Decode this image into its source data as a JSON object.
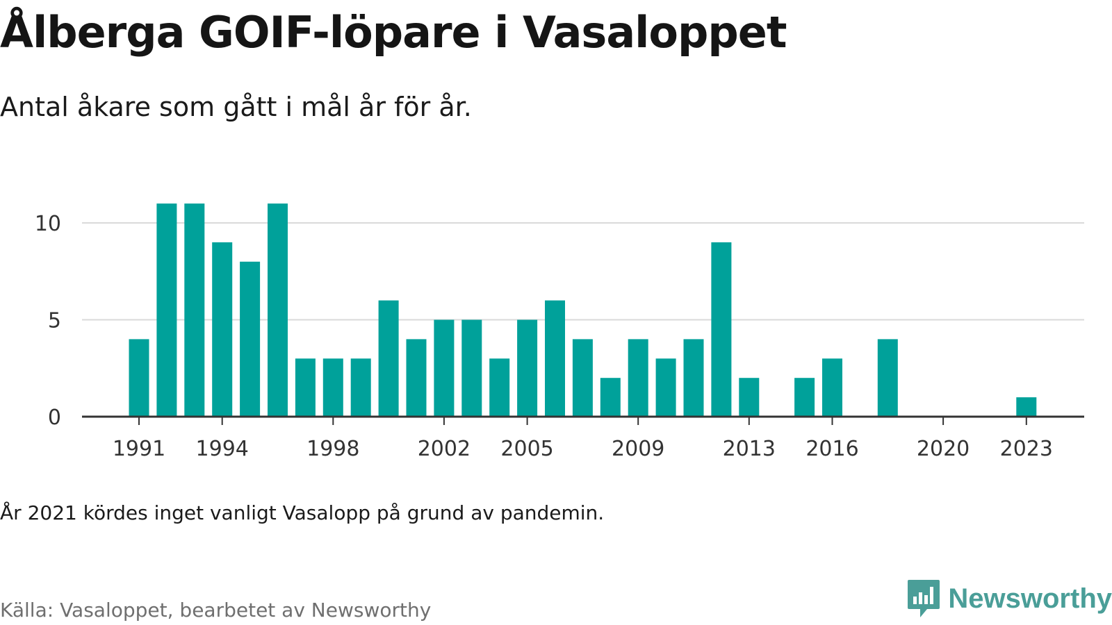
{
  "title": "Ålberga GOIF-löpare i Vasaloppet",
  "subtitle": "Antal åkare som gått i mål år för år.",
  "note": "År 2021 kördes inget vanligt Vasalopp på grund av pandemin.",
  "source": "Källa: Vasaloppet, bearbetet av Newsworthy",
  "brand": {
    "name": "Newsworthy",
    "icon": "newsworthy-logo-icon",
    "color": "#4a9e98"
  },
  "colors": {
    "bar": "#00a19a",
    "grid": "#d9d9d9",
    "axis": "#333333"
  },
  "chart_data": {
    "type": "bar",
    "x": [
      1991,
      1992,
      1993,
      1994,
      1995,
      1996,
      1997,
      1998,
      1999,
      2000,
      2001,
      2002,
      2003,
      2004,
      2005,
      2006,
      2007,
      2008,
      2009,
      2010,
      2011,
      2012,
      2013,
      2014,
      2015,
      2016,
      2017,
      2018,
      2019,
      2020,
      2021,
      2022,
      2023
    ],
    "values": [
      4,
      11,
      11,
      9,
      8,
      11,
      3,
      3,
      3,
      6,
      4,
      5,
      5,
      3,
      5,
      6,
      4,
      2,
      4,
      3,
      4,
      9,
      2,
      0,
      2,
      3,
      0,
      4,
      0,
      0,
      0,
      0,
      1
    ],
    "xticks": [
      "1991",
      "1994",
      "1998",
      "2002",
      "2005",
      "2009",
      "2013",
      "2016",
      "2020",
      "2023"
    ],
    "yticks": [
      "0",
      "5",
      "10"
    ],
    "ylim": [
      0,
      11
    ],
    "xlabel": "",
    "ylabel": "",
    "grid": true,
    "legend": "none"
  }
}
